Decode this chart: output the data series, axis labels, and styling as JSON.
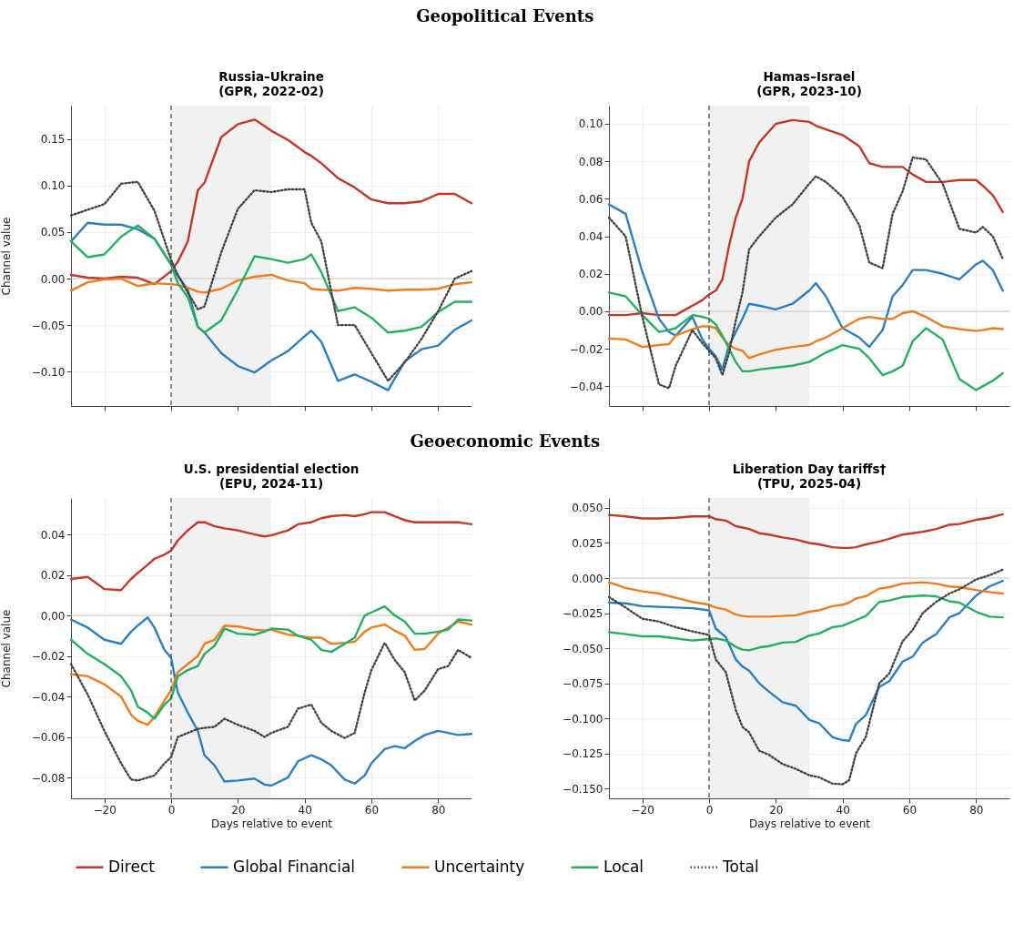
{
  "chart_data": [
    {
      "type": "line",
      "title": "Russia–Ukraine\n(GPR, 2022-02)",
      "ylabel": "Channel value",
      "annotations": [
        "Geopolitical Events"
      ],
      "tick_labels": "y",
      "grid": true,
      "legend": "bottom",
      "x": [
        -30,
        -25,
        -20,
        -15,
        -10,
        -5,
        0,
        2,
        5,
        8,
        10,
        15,
        20,
        25,
        30,
        35,
        40,
        42,
        45,
        50,
        55,
        60,
        65,
        70,
        75,
        80,
        85,
        90
      ],
      "xlim": [
        -30,
        90
      ],
      "xticks": [
        -20,
        0,
        20,
        40,
        60,
        80
      ],
      "ylim": [
        -0.137,
        0.186
      ],
      "yticks": [
        {
          "value": -0.1,
          "label": "−0.10"
        },
        {
          "value": -0.05,
          "label": "−0.05"
        },
        {
          "value": 0,
          "label": "0.00"
        },
        {
          "value": 0.05,
          "label": "0.05"
        },
        {
          "value": 0.1,
          "label": "0.10"
        },
        {
          "value": 0.15,
          "label": "0.15"
        }
      ],
      "bands": [
        {
          "axis": "x",
          "from": 0,
          "to": 30,
          "color": "#f1f1f1"
        }
      ],
      "ref_lines": [
        {
          "axis": "y",
          "value": 0,
          "color": "#c8c8c8",
          "line_style": "solid"
        },
        {
          "axis": "x",
          "value": 0,
          "color": "#444444",
          "line_style": "dashed"
        }
      ],
      "series": [
        {
          "name": "Direct",
          "color": "#c0392b",
          "line_style": "solid",
          "values": [
            0.004,
            0.001,
            0.0,
            0.002,
            0.001,
            -0.006,
            0.008,
            0.018,
            0.04,
            0.095,
            0.103,
            0.152,
            0.166,
            0.171,
            0.159,
            0.149,
            0.136,
            0.132,
            0.124,
            0.108,
            0.098,
            0.085,
            0.081,
            0.081,
            0.083,
            0.091,
            0.091,
            0.081
          ]
        },
        {
          "name": "Global Financial",
          "color": "#2e7fbf",
          "line_style": "solid",
          "values": [
            0.04,
            0.06,
            0.058,
            0.058,
            0.053,
            0.043,
            0.015,
            0.003,
            -0.012,
            -0.052,
            -0.058,
            -0.08,
            -0.094,
            -0.101,
            -0.088,
            -0.078,
            -0.062,
            -0.056,
            -0.068,
            -0.11,
            -0.103,
            -0.111,
            -0.12,
            -0.089,
            -0.076,
            -0.072,
            -0.055,
            -0.045
          ]
        },
        {
          "name": "Uncertainty",
          "color": "#ec7d22",
          "line_style": "solid",
          "values": [
            -0.013,
            -0.004,
            -0.001,
            0.0,
            -0.008,
            -0.005,
            -0.006,
            -0.007,
            -0.01,
            -0.014,
            -0.015,
            -0.011,
            -0.002,
            0.002,
            0.004,
            -0.002,
            -0.005,
            -0.011,
            -0.012,
            -0.013,
            -0.01,
            -0.011,
            -0.013,
            -0.012,
            -0.012,
            -0.011,
            -0.006,
            -0.004
          ]
        },
        {
          "name": "Local",
          "color": "#27ae60",
          "line_style": "solid",
          "values": [
            0.04,
            0.023,
            0.026,
            0.045,
            0.057,
            0.043,
            0.015,
            -0.005,
            -0.02,
            -0.052,
            -0.058,
            -0.045,
            -0.012,
            0.024,
            0.021,
            0.017,
            0.021,
            0.026,
            0.007,
            -0.035,
            -0.031,
            -0.042,
            -0.058,
            -0.056,
            -0.052,
            -0.036,
            -0.025,
            -0.025
          ]
        },
        {
          "name": "Total",
          "color": "#444444",
          "line_style": "dotted",
          "values": [
            0.068,
            0.074,
            0.08,
            0.102,
            0.104,
            0.073,
            0.02,
            0.004,
            -0.015,
            -0.033,
            -0.03,
            0.028,
            0.075,
            0.095,
            0.093,
            0.096,
            0.096,
            0.06,
            0.04,
            -0.05,
            -0.05,
            -0.08,
            -0.11,
            -0.09,
            -0.065,
            -0.035,
            0.0,
            0.008
          ]
        }
      ]
    },
    {
      "type": "line",
      "title": "Hamas–Israel\n(GPR, 2023-10)",
      "tick_labels": "y",
      "grid": true,
      "x": [
        -30,
        -25,
        -20,
        -15,
        -12,
        -10,
        -5,
        -2,
        0,
        2,
        4,
        6,
        8,
        10,
        12,
        15,
        20,
        25,
        30,
        32,
        35,
        40,
        45,
        48,
        52,
        55,
        58,
        61,
        65,
        70,
        75,
        80,
        82,
        85,
        88
      ],
      "xlim": [
        -30,
        90
      ],
      "xticks": [
        -20,
        0,
        20,
        40,
        60,
        80
      ],
      "ylim": [
        -0.0505,
        0.1097
      ],
      "yticks": [
        {
          "value": -0.04,
          "label": "−0.04"
        },
        {
          "value": -0.02,
          "label": "−0.02"
        },
        {
          "value": 0,
          "label": "0.00"
        },
        {
          "value": 0.02,
          "label": "0.02"
        },
        {
          "value": 0.04,
          "label": "0.04"
        },
        {
          "value": 0.06,
          "label": "0.06"
        },
        {
          "value": 0.08,
          "label": "0.08"
        },
        {
          "value": 0.1,
          "label": "0.10"
        }
      ],
      "bands": [
        {
          "axis": "x",
          "from": 0,
          "to": 30,
          "color": "#f1f1f1"
        }
      ],
      "ref_lines": [
        {
          "axis": "y",
          "value": 0,
          "color": "#c8c8c8",
          "line_style": "solid"
        },
        {
          "axis": "x",
          "value": 0,
          "color": "#444444",
          "line_style": "dashed"
        }
      ],
      "series": [
        {
          "color": "#c0392b",
          "line_style": "solid",
          "values": [
            -0.002,
            -0.002,
            -0.001,
            -0.002,
            -0.002,
            -0.002,
            0.003,
            0.006,
            0.009,
            0.011,
            0.017,
            0.035,
            0.05,
            0.06,
            0.08,
            0.09,
            0.1,
            0.102,
            0.101,
            0.099,
            0.097,
            0.094,
            0.088,
            0.079,
            0.077,
            0.077,
            0.077,
            0.073,
            0.069,
            0.069,
            0.07,
            0.07,
            0.067,
            0.062,
            0.053
          ]
        },
        {
          "color": "#2e7fbf",
          "line_style": "solid",
          "values": [
            0.057,
            0.052,
            0.021,
            -0.004,
            -0.011,
            -0.013,
            -0.003,
            -0.015,
            -0.02,
            -0.024,
            -0.031,
            -0.018,
            -0.011,
            -0.004,
            0.004,
            0.003,
            0.001,
            0.004,
            0.011,
            0.015,
            0.008,
            -0.009,
            -0.014,
            -0.019,
            -0.01,
            0.008,
            0.014,
            0.022,
            0.022,
            0.02,
            0.017,
            0.025,
            0.027,
            0.022,
            0.011
          ]
        },
        {
          "color": "#ec7d22",
          "line_style": "solid",
          "values": [
            -0.0145,
            -0.015,
            -0.019,
            -0.018,
            -0.0175,
            -0.013,
            -0.0095,
            -0.008,
            -0.008,
            -0.009,
            -0.014,
            -0.018,
            -0.02,
            -0.021,
            -0.025,
            -0.023,
            -0.0205,
            -0.019,
            -0.018,
            -0.016,
            -0.014,
            -0.009,
            -0.004,
            -0.003,
            -0.004,
            -0.004,
            -0.001,
            0.0,
            -0.003,
            -0.008,
            -0.0095,
            -0.0105,
            -0.01,
            -0.009,
            -0.0095
          ]
        },
        {
          "color": "#27ae60",
          "line_style": "solid",
          "values": [
            0.01,
            0.008,
            -0.002,
            -0.011,
            -0.01,
            -0.009,
            -0.002,
            -0.003,
            -0.004,
            -0.007,
            -0.013,
            -0.02,
            -0.027,
            -0.032,
            -0.032,
            -0.031,
            -0.03,
            -0.029,
            -0.027,
            -0.025,
            -0.022,
            -0.018,
            -0.02,
            -0.025,
            -0.034,
            -0.032,
            -0.029,
            -0.016,
            -0.009,
            -0.015,
            -0.036,
            -0.042,
            -0.04,
            -0.037,
            -0.033
          ]
        },
        {
          "color": "#444444",
          "line_style": "dotted",
          "values": [
            0.05,
            0.04,
            -0.003,
            -0.039,
            -0.041,
            -0.029,
            -0.01,
            -0.017,
            -0.021,
            -0.025,
            -0.034,
            -0.022,
            -0.005,
            0.01,
            0.033,
            0.04,
            0.05,
            0.057,
            0.068,
            0.072,
            0.069,
            0.061,
            0.046,
            0.026,
            0.023,
            0.052,
            0.064,
            0.082,
            0.081,
            0.068,
            0.044,
            0.042,
            0.045,
            0.04,
            0.028
          ]
        }
      ]
    },
    {
      "type": "line",
      "title": "U.S. presidential election\n(EPU, 2024-11)",
      "xlabel": "Days relative to event",
      "ylabel": "Channel value",
      "annotations": [
        "Geoeconomic Events"
      ],
      "grid": true,
      "x": [
        -30,
        -25,
        -20,
        -15,
        -12,
        -10,
        -7,
        -5,
        -2,
        0,
        2,
        5,
        8,
        10,
        13,
        16,
        20,
        25,
        28,
        30,
        35,
        38,
        42,
        45,
        48,
        52,
        55,
        58,
        60,
        64,
        67,
        70,
        73,
        76,
        80,
        83,
        86,
        90
      ],
      "xlim": [
        -30,
        90
      ],
      "xticks": [
        {
          "value": -20,
          "label": "−20"
        },
        0,
        20,
        40,
        60,
        80
      ],
      "ylim": [
        -0.0903,
        0.058
      ],
      "yticks": [
        {
          "value": -0.08,
          "label": "−0.08"
        },
        {
          "value": -0.06,
          "label": "−0.06"
        },
        {
          "value": -0.04,
          "label": "−0.04"
        },
        {
          "value": -0.02,
          "label": "−0.02"
        },
        {
          "value": 0,
          "label": "0.00"
        },
        {
          "value": 0.02,
          "label": "0.02"
        },
        {
          "value": 0.04,
          "label": "0.04"
        }
      ],
      "bands": [
        {
          "axis": "x",
          "from": 0,
          "to": 30,
          "color": "#f1f1f1"
        }
      ],
      "ref_lines": [
        {
          "axis": "y",
          "value": 0,
          "color": "#c8c8c8",
          "line_style": "solid"
        },
        {
          "axis": "x",
          "value": 0,
          "color": "#444444",
          "line_style": "dashed"
        }
      ],
      "series": [
        {
          "color": "#c0392b",
          "line_style": "solid",
          "values": [
            0.018,
            0.019,
            0.013,
            0.0125,
            0.018,
            0.021,
            0.025,
            0.028,
            0.03,
            0.032,
            0.037,
            0.042,
            0.046,
            0.046,
            0.044,
            0.043,
            0.042,
            0.04,
            0.039,
            0.0395,
            0.042,
            0.045,
            0.046,
            0.048,
            0.049,
            0.0495,
            0.049,
            0.05,
            0.051,
            0.051,
            0.049,
            0.047,
            0.046,
            0.046,
            0.046,
            0.046,
            0.046,
            0.045
          ]
        },
        {
          "color": "#2e7fbf",
          "line_style": "solid",
          "values": [
            -0.002,
            -0.006,
            -0.012,
            -0.014,
            -0.008,
            -0.005,
            -0.001,
            -0.006,
            -0.017,
            -0.021,
            -0.038,
            -0.048,
            -0.057,
            -0.069,
            -0.074,
            -0.082,
            -0.0815,
            -0.0805,
            -0.0835,
            -0.084,
            -0.08,
            -0.072,
            -0.069,
            -0.071,
            -0.074,
            -0.081,
            -0.083,
            -0.079,
            -0.073,
            -0.066,
            -0.0645,
            -0.0655,
            -0.062,
            -0.059,
            -0.057,
            -0.058,
            -0.059,
            -0.0585
          ]
        },
        {
          "color": "#ec7d22",
          "line_style": "solid",
          "values": [
            -0.029,
            -0.03,
            -0.034,
            -0.04,
            -0.049,
            -0.052,
            -0.054,
            -0.05,
            -0.042,
            -0.037,
            -0.028,
            -0.024,
            -0.02,
            -0.014,
            -0.012,
            -0.005,
            -0.0055,
            -0.007,
            -0.0075,
            -0.007,
            -0.0095,
            -0.01,
            -0.011,
            -0.011,
            -0.014,
            -0.0135,
            -0.013,
            -0.008,
            -0.006,
            -0.0045,
            -0.0075,
            -0.01,
            -0.017,
            -0.0165,
            -0.009,
            -0.006,
            -0.003,
            -0.0045
          ]
        },
        {
          "color": "#27ae60",
          "line_style": "solid",
          "values": [
            -0.012,
            -0.019,
            -0.024,
            -0.03,
            -0.037,
            -0.045,
            -0.048,
            -0.051,
            -0.044,
            -0.041,
            -0.03,
            -0.027,
            -0.025,
            -0.019,
            -0.015,
            -0.0065,
            -0.009,
            -0.0095,
            -0.008,
            -0.0065,
            -0.007,
            -0.01,
            -0.012,
            -0.017,
            -0.018,
            -0.014,
            -0.011,
            0.0,
            0.0015,
            0.0045,
            0.0,
            -0.003,
            -0.009,
            -0.009,
            -0.008,
            -0.007,
            -0.002,
            -0.0025
          ]
        },
        {
          "color": "#444444",
          "line_style": "dotted",
          "values": [
            -0.024,
            -0.039,
            -0.057,
            -0.073,
            -0.081,
            -0.0815,
            -0.08,
            -0.079,
            -0.073,
            -0.07,
            -0.06,
            -0.058,
            -0.056,
            -0.0555,
            -0.055,
            -0.051,
            -0.054,
            -0.057,
            -0.06,
            -0.058,
            -0.055,
            -0.046,
            -0.044,
            -0.053,
            -0.057,
            -0.0605,
            -0.058,
            -0.038,
            -0.027,
            -0.0135,
            -0.022,
            -0.028,
            -0.042,
            -0.037,
            -0.0265,
            -0.025,
            -0.017,
            -0.021
          ]
        }
      ]
    },
    {
      "type": "line",
      "title": "Liberation Day tariffs†\n(TPU, 2025-04)",
      "xlabel": "Days relative to event",
      "grid": true,
      "x": [
        -30,
        -25,
        -20,
        -15,
        -10,
        -5,
        0,
        2,
        5,
        8,
        10,
        12,
        15,
        18,
        22,
        26,
        30,
        33,
        37,
        40,
        42,
        44,
        47,
        51,
        54,
        58,
        61,
        64,
        68,
        72,
        75,
        80,
        84,
        88
      ],
      "xlim": [
        -30,
        90
      ],
      "xticks": [
        {
          "value": -20,
          "label": "−20"
        },
        0,
        20,
        40,
        60,
        80
      ],
      "ylim": [
        -0.157,
        0.0571
      ],
      "yticks": [
        {
          "value": -0.15,
          "label": "−0.150"
        },
        {
          "value": -0.125,
          "label": "−0.125"
        },
        {
          "value": -0.1,
          "label": "−0.100"
        },
        {
          "value": -0.075,
          "label": "−0.075"
        },
        {
          "value": -0.05,
          "label": "−0.050"
        },
        {
          "value": -0.025,
          "label": "−0.025"
        },
        {
          "value": 0,
          "label": "0.000"
        },
        {
          "value": 0.025,
          "label": "0.025"
        },
        {
          "value": 0.05,
          "label": "0.050"
        }
      ],
      "bands": [
        {
          "axis": "x",
          "from": 0,
          "to": 30,
          "color": "#f1f1f1"
        }
      ],
      "ref_lines": [
        {
          "axis": "y",
          "value": 0,
          "color": "#c8c8c8",
          "line_style": "solid"
        },
        {
          "axis": "x",
          "value": 0,
          "color": "#444444",
          "line_style": "dashed"
        }
      ],
      "series": [
        {
          "color": "#c0392b",
          "line_style": "solid",
          "values": [
            0.045,
            0.044,
            0.0425,
            0.0425,
            0.043,
            0.044,
            0.044,
            0.042,
            0.041,
            0.037,
            0.036,
            0.035,
            0.032,
            0.031,
            0.029,
            0.0275,
            0.025,
            0.024,
            0.022,
            0.0215,
            0.0215,
            0.022,
            0.024,
            0.026,
            0.028,
            0.031,
            0.032,
            0.033,
            0.035,
            0.038,
            0.0385,
            0.0415,
            0.043,
            0.0455
          ]
        },
        {
          "color": "#2e7fbf",
          "line_style": "solid",
          "values": [
            -0.0175,
            -0.018,
            -0.02,
            -0.0205,
            -0.021,
            -0.0215,
            -0.023,
            -0.036,
            -0.042,
            -0.058,
            -0.063,
            -0.066,
            -0.075,
            -0.081,
            -0.0885,
            -0.091,
            -0.101,
            -0.1035,
            -0.1135,
            -0.1155,
            -0.116,
            -0.104,
            -0.0975,
            -0.0775,
            -0.0735,
            -0.0595,
            -0.056,
            -0.046,
            -0.04,
            -0.028,
            -0.025,
            -0.0125,
            -0.006,
            -0.002
          ]
        },
        {
          "color": "#ec7d22",
          "line_style": "solid",
          "values": [
            -0.003,
            -0.007,
            -0.0095,
            -0.011,
            -0.014,
            -0.017,
            -0.019,
            -0.021,
            -0.0225,
            -0.026,
            -0.027,
            -0.0275,
            -0.0275,
            -0.0275,
            -0.027,
            -0.0265,
            -0.024,
            -0.023,
            -0.02,
            -0.019,
            -0.0175,
            -0.0145,
            -0.013,
            -0.0075,
            -0.0065,
            -0.004,
            -0.0035,
            -0.003,
            -0.004,
            -0.006,
            -0.0065,
            -0.0085,
            -0.01,
            -0.011
          ]
        },
        {
          "color": "#27ae60",
          "line_style": "solid",
          "values": [
            -0.0385,
            -0.04,
            -0.0415,
            -0.0415,
            -0.043,
            -0.0445,
            -0.0435,
            -0.043,
            -0.0445,
            -0.049,
            -0.051,
            -0.0515,
            -0.0495,
            -0.0485,
            -0.046,
            -0.0455,
            -0.041,
            -0.0395,
            -0.035,
            -0.034,
            -0.032,
            -0.03,
            -0.027,
            -0.017,
            -0.016,
            -0.0135,
            -0.013,
            -0.0125,
            -0.013,
            -0.0165,
            -0.0175,
            -0.024,
            -0.0275,
            -0.028
          ]
        },
        {
          "color": "#444444",
          "line_style": "dotted",
          "values": [
            -0.0135,
            -0.021,
            -0.029,
            -0.031,
            -0.035,
            -0.038,
            -0.0405,
            -0.058,
            -0.067,
            -0.094,
            -0.106,
            -0.11,
            -0.123,
            -0.126,
            -0.1325,
            -0.136,
            -0.1405,
            -0.142,
            -0.1465,
            -0.147,
            -0.144,
            -0.125,
            -0.113,
            -0.075,
            -0.068,
            -0.045,
            -0.037,
            -0.025,
            -0.017,
            -0.011,
            -0.008,
            -0.001,
            0.002,
            0.006
          ]
        }
      ]
    }
  ]
}
